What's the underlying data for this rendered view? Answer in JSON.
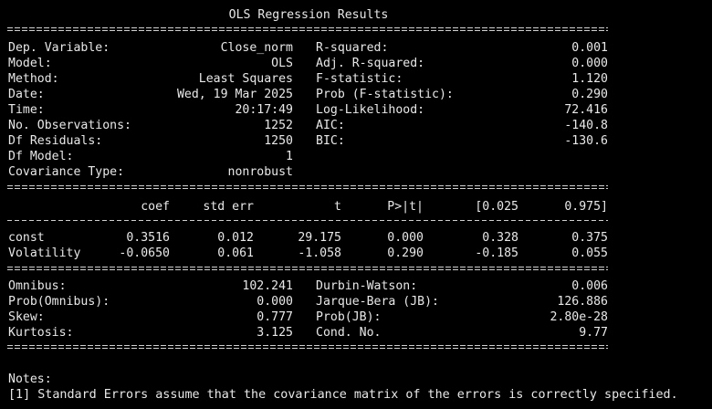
{
  "title": "OLS Regression Results",
  "summary_left": [
    {
      "label": "Dep. Variable:",
      "value": "Close_norm"
    },
    {
      "label": "Model:",
      "value": "OLS"
    },
    {
      "label": "Method:",
      "value": "Least Squares"
    },
    {
      "label": "Date:",
      "value": "Wed, 19 Mar 2025"
    },
    {
      "label": "Time:",
      "value": "20:17:49"
    },
    {
      "label": "No. Observations:",
      "value": "1252"
    },
    {
      "label": "Df Residuals:",
      "value": "1250"
    },
    {
      "label": "Df Model:",
      "value": "1"
    },
    {
      "label": "Covariance Type:",
      "value": "nonrobust"
    }
  ],
  "summary_right": [
    {
      "label": "R-squared:",
      "value": "0.001"
    },
    {
      "label": "Adj. R-squared:",
      "value": "0.000"
    },
    {
      "label": "F-statistic:",
      "value": "1.120"
    },
    {
      "label": "Prob (F-statistic):",
      "value": "0.290"
    },
    {
      "label": "Log-Likelihood:",
      "value": "72.416"
    },
    {
      "label": "AIC:",
      "value": "-140.8"
    },
    {
      "label": "BIC:",
      "value": "-130.6"
    }
  ],
  "coef_table": {
    "headers": [
      "coef",
      "std err",
      "t",
      "P>|t|",
      "[0.025",
      "0.975]"
    ],
    "rows": [
      {
        "name": "const",
        "values": [
          "0.3516",
          "0.012",
          "29.175",
          "0.000",
          "0.328",
          "0.375"
        ]
      },
      {
        "name": "Volatility",
        "values": [
          "-0.0650",
          "0.061",
          "-1.058",
          "0.290",
          "-0.185",
          "0.055"
        ]
      }
    ]
  },
  "diagnostics_left": [
    {
      "label": "Omnibus:",
      "value": "102.241"
    },
    {
      "label": "Prob(Omnibus):",
      "value": "0.000"
    },
    {
      "label": "Skew:",
      "value": "0.777"
    },
    {
      "label": "Kurtosis:",
      "value": "3.125"
    }
  ],
  "diagnostics_right": [
    {
      "label": "Durbin-Watson:",
      "value": "0.006"
    },
    {
      "label": "Jarque-Bera (JB):",
      "value": "126.886"
    },
    {
      "label": "Prob(JB):",
      "value": "2.80e-28"
    },
    {
      "label": "Cond. No.",
      "value": "9.77"
    }
  ],
  "notes": {
    "heading": "Notes:",
    "lines": [
      "[1] Standard Errors assume that the covariance matrix of the errors is correctly specified."
    ]
  },
  "colors": {
    "background": "#000000",
    "text": "#e8e8e8"
  }
}
